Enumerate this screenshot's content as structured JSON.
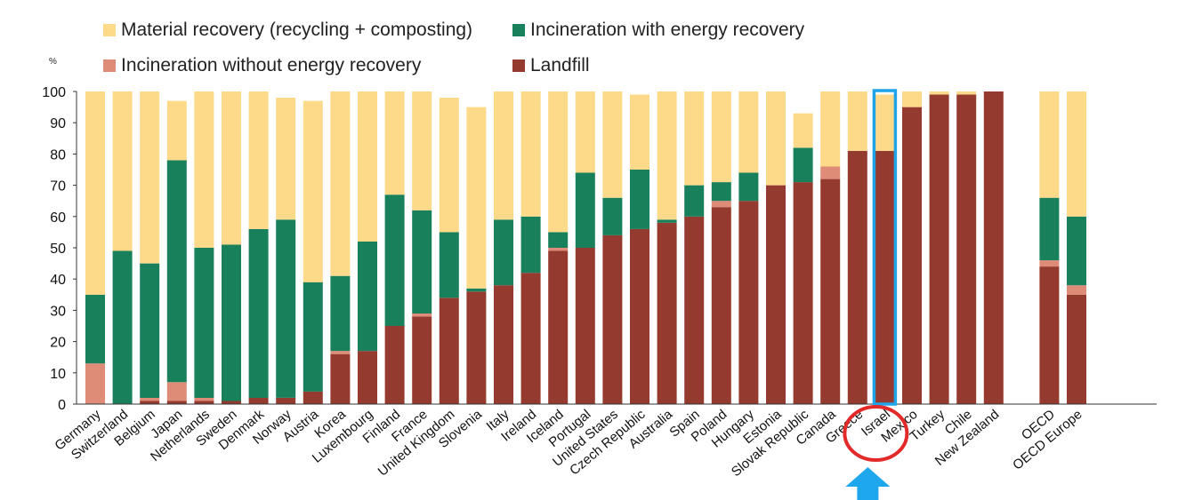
{
  "chart_data": {
    "type": "bar",
    "stacked": true,
    "title": "",
    "xlabel": "",
    "ylabel": "%",
    "ylim": [
      0,
      100
    ],
    "yticks": [
      0,
      10,
      20,
      30,
      40,
      50,
      60,
      70,
      80,
      90,
      100
    ],
    "grid": false,
    "legend_position": "top",
    "categories": [
      "Germany",
      "Switzerland",
      "Belgium",
      "Japan",
      "Netherlands",
      "Sweden",
      "Denmark",
      "Norway",
      "Austria",
      "Korea",
      "Luxembourg",
      "Finland",
      "France",
      "United Kingdom",
      "Slovenia",
      "Italy",
      "Ireland",
      "Iceland",
      "Portugal",
      "United States",
      "Czech Republic",
      "Australia",
      "Spain",
      "Poland",
      "Hungary",
      "Estonia",
      "Slovak Republic",
      "Canada",
      "Greece",
      "Israel",
      "Mexico",
      "Turkey",
      "Chile",
      "New Zealand",
      "OECD",
      "OECD Europe"
    ],
    "series": [
      {
        "name": "Landfill",
        "color": "#953a2e",
        "values": [
          0,
          0,
          1,
          1,
          1,
          1,
          2,
          2,
          4,
          16,
          17,
          25,
          28,
          34,
          36,
          38,
          42,
          49,
          50,
          54,
          56,
          58,
          60,
          63,
          65,
          70,
          71,
          72,
          81,
          81,
          95,
          99,
          99,
          100,
          44,
          35
        ]
      },
      {
        "name": "Incineration without energy recovery",
        "color": "#de8b78",
        "values": [
          13,
          0,
          1,
          6,
          1,
          0,
          0,
          0,
          0,
          1,
          0,
          0,
          1,
          0,
          0,
          0,
          0,
          1,
          0,
          0,
          0,
          0,
          0,
          2,
          0,
          0,
          0,
          4,
          0,
          0,
          0,
          0,
          0,
          0,
          2,
          3
        ]
      },
      {
        "name": "Incineration with energy recovery",
        "color": "#18805a",
        "values": [
          22,
          49,
          43,
          71,
          48,
          50,
          54,
          57,
          35,
          24,
          35,
          42,
          33,
          21,
          1,
          21,
          18,
          5,
          24,
          12,
          19,
          1,
          10,
          6,
          9,
          0,
          11,
          0,
          0,
          0,
          0,
          0,
          0,
          0,
          20,
          22
        ]
      },
      {
        "name": "Material recovery (recycling + composting)",
        "color": "#fdd98a",
        "values": [
          65,
          51,
          55,
          19,
          50,
          49,
          44,
          39,
          58,
          59,
          48,
          33,
          38,
          43,
          58,
          41,
          40,
          45,
          26,
          34,
          24,
          41,
          30,
          29,
          26,
          30,
          11,
          24,
          19,
          18,
          5,
          1,
          1,
          0,
          34,
          40
        ]
      }
    ],
    "highlight": "Israel"
  },
  "legend": {
    "unit": "%",
    "items": [
      {
        "label": "Material recovery (recycling + composting)",
        "color": "#fdd98a"
      },
      {
        "label": "Incineration with energy recovery",
        "color": "#18805a"
      },
      {
        "label": "Incineration without energy recovery",
        "color": "#de8b78"
      },
      {
        "label": "Landfill",
        "color": "#953a2e"
      }
    ]
  }
}
